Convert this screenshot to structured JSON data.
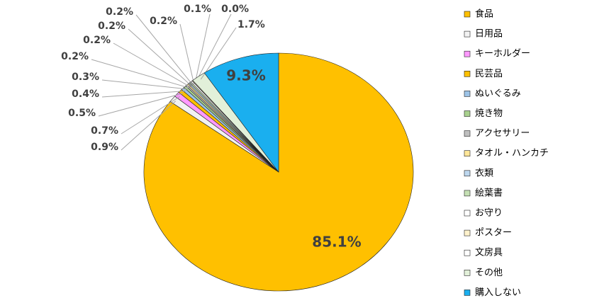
{
  "chart_data": {
    "type": "pie",
    "categories": [
      "食品",
      "日用品",
      "キーホルダー",
      "民芸品",
      "ぬいぐるみ",
      "焼き物",
      "アクセサリー",
      "タオル・ハンカチ",
      "衣類",
      "絵葉書",
      "お守り",
      "ポスター",
      "文房具",
      "その他",
      "購入しない"
    ],
    "values": [
      85.1,
      0.9,
      0.7,
      0.5,
      0.4,
      0.3,
      0.2,
      0.2,
      0.2,
      0.2,
      0.2,
      0.1,
      0.0,
      1.7,
      9.3
    ],
    "value_labels": [
      "85.1%",
      "0.9%",
      "0.7%",
      "0.5%",
      "0.4%",
      "0.3%",
      "0.2%",
      "0.2%",
      "0.2%",
      "0.2%",
      "0.2%",
      "0.1%",
      "0.0%",
      "1.7%",
      "9.3%"
    ],
    "colors": [
      "#FFC000",
      "#F2F2F2",
      "#FF99FF",
      "#FFC000",
      "#9DC3E6",
      "#A9D18E",
      "#BFBFBF",
      "#FFE699",
      "#BDD7EE",
      "#C5E0B4",
      "#FFFFFF",
      "#FFF2CC",
      "#FFFFFF",
      "#E2F0D9",
      "#1AAFEF"
    ],
    "legend": "right"
  }
}
